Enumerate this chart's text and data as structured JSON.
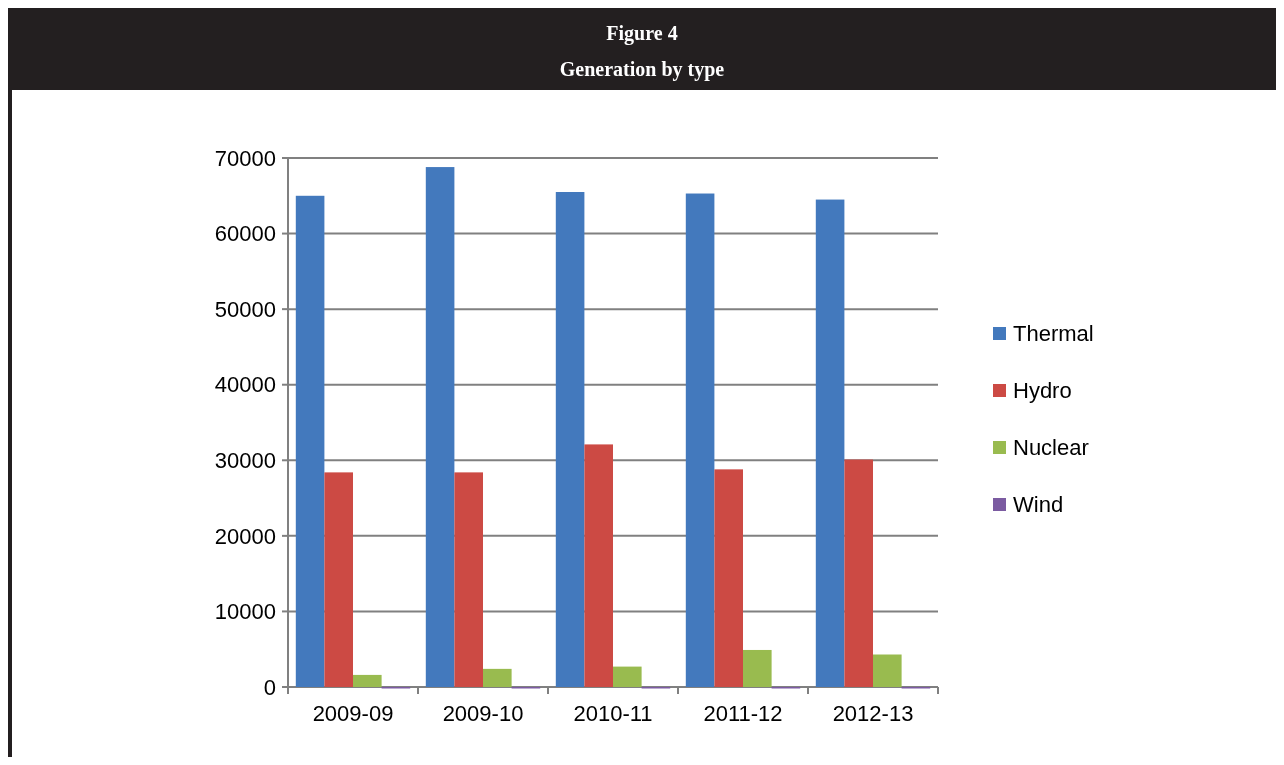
{
  "chart_data": {
    "type": "bar",
    "title": "Figure 4",
    "subtitle": "Generation by type",
    "categories": [
      "2009-09",
      "2009-10",
      "2010-11",
      "2011-12",
      "2012-13"
    ],
    "series": [
      {
        "name": "Thermal",
        "color": "#4379bd",
        "values": [
          65000,
          68800,
          65500,
          65300,
          64500
        ]
      },
      {
        "name": "Hydro",
        "color": "#cc4a44",
        "values": [
          28400,
          28400,
          32100,
          28800,
          30100
        ]
      },
      {
        "name": "Nuclear",
        "color": "#99bb4f",
        "values": [
          1600,
          2400,
          2700,
          4900,
          4300
        ]
      },
      {
        "name": "Wind",
        "color": "#7b5ba1",
        "values": [
          0,
          0,
          0,
          0,
          0
        ]
      }
    ],
    "ylim": [
      0,
      70000
    ],
    "yticks": [
      0,
      10000,
      20000,
      30000,
      40000,
      50000,
      60000,
      70000
    ],
    "grid": "y",
    "legend": "right"
  }
}
